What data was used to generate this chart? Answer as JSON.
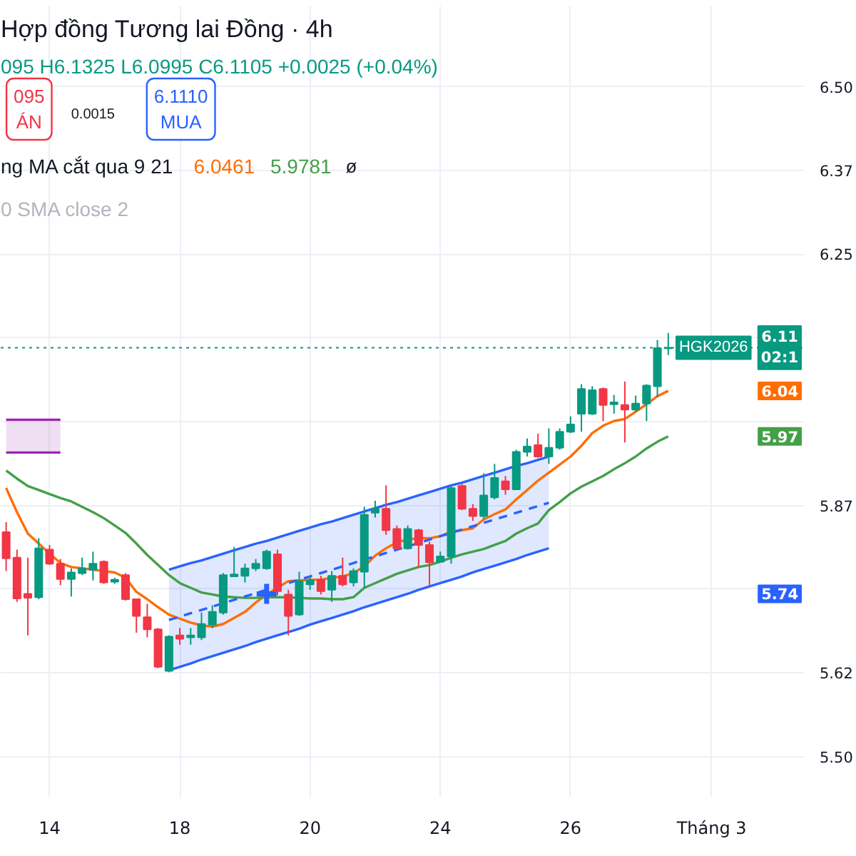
{
  "chart_data": {
    "type": "candlestick",
    "title": "Hợp đồng Tương lai Đồng · 4h",
    "subtitle": "095 H6.1325 L6.0995 C6.1105 +0.0025 (+0.04%)",
    "categories": [
      null,
      null,
      null,
      null,
      "14",
      null,
      null,
      null,
      null,
      null,
      null,
      null,
      null,
      null,
      null,
      null,
      "18",
      null,
      null,
      null,
      null,
      null,
      null,
      null,
      null,
      null,
      null,
      null,
      "20",
      null,
      null,
      null,
      null,
      null,
      null,
      null,
      null,
      null,
      null,
      null,
      "24",
      null,
      null,
      null,
      null,
      null,
      null,
      null,
      null,
      null,
      null,
      null,
      "26",
      null,
      null,
      null,
      null,
      null,
      null,
      null,
      null,
      null,
      null,
      null,
      null,
      "Tháng 3",
      null,
      null,
      null,
      null,
      null,
      null,
      null,
      null
    ],
    "ohlc": [
      [
        5.835,
        5.85,
        5.777,
        5.796
      ],
      [
        5.797,
        5.809,
        5.731,
        5.736
      ],
      [
        5.743,
        5.797,
        5.681,
        5.737
      ],
      [
        5.738,
        5.826,
        5.735,
        5.811
      ],
      [
        5.809,
        5.816,
        5.786,
        5.788
      ],
      [
        5.788,
        5.795,
        5.756,
        5.765
      ],
      [
        5.765,
        5.781,
        5.739,
        5.775
      ],
      [
        5.774,
        5.797,
        5.771,
        5.781
      ],
      [
        5.779,
        5.806,
        5.763,
        5.788
      ],
      [
        5.791,
        5.793,
        5.758,
        5.76
      ],
      [
        5.761,
        5.767,
        5.758,
        5.764
      ],
      [
        5.771,
        5.774,
        5.733,
        5.735
      ],
      [
        5.735,
        5.736,
        5.685,
        5.71
      ],
      [
        5.708,
        5.728,
        5.678,
        5.69
      ],
      [
        5.69,
        5.692,
        5.632,
        5.634
      ],
      [
        5.628,
        5.681,
        5.626,
        5.679
      ],
      [
        5.681,
        5.692,
        5.667,
        5.676
      ],
      [
        5.678,
        5.692,
        5.667,
        5.681
      ],
      [
        5.678,
        5.715,
        5.674,
        5.698
      ],
      [
        5.697,
        5.726,
        5.692,
        5.716
      ],
      [
        5.715,
        5.774,
        5.712,
        5.771
      ],
      [
        5.769,
        5.813,
        5.768,
        5.772
      ],
      [
        5.77,
        5.788,
        5.76,
        5.781
      ],
      [
        5.781,
        5.795,
        5.777,
        5.788
      ],
      [
        5.781,
        5.809,
        5.779,
        5.806
      ],
      [
        5.802,
        5.809,
        5.741,
        5.747
      ],
      [
        5.742,
        5.749,
        5.681,
        5.71
      ],
      [
        5.712,
        5.776,
        5.71,
        5.762
      ],
      [
        5.757,
        5.77,
        5.749,
        5.763
      ],
      [
        5.764,
        5.77,
        5.742,
        5.747
      ],
      [
        5.749,
        5.777,
        5.731,
        5.77
      ],
      [
        5.77,
        5.797,
        5.754,
        5.757
      ],
      [
        5.76,
        5.781,
        5.754,
        5.777
      ],
      [
        5.776,
        5.873,
        5.752,
        5.861
      ],
      [
        5.864,
        5.882,
        5.857,
        5.87
      ],
      [
        5.87,
        5.905,
        5.831,
        5.838
      ],
      [
        5.84,
        5.845,
        5.809,
        5.811
      ],
      [
        5.811,
        5.845,
        5.809,
        5.84
      ],
      [
        5.838,
        5.84,
        5.783,
        5.816
      ],
      [
        5.816,
        5.821,
        5.754,
        5.79
      ],
      [
        5.791,
        5.806,
        5.79,
        5.799
      ],
      [
        5.799,
        5.905,
        5.788,
        5.901
      ],
      [
        5.904,
        5.907,
        5.868,
        5.87
      ],
      [
        5.87,
        5.877,
        5.852,
        5.859
      ],
      [
        5.859,
        5.923,
        5.855,
        5.89
      ],
      [
        5.887,
        5.937,
        5.884,
        5.916
      ],
      [
        5.911,
        5.919,
        5.891,
        5.899
      ],
      [
        5.899,
        5.958,
        5.898,
        5.955
      ],
      [
        5.955,
        5.975,
        5.948,
        5.963
      ],
      [
        5.965,
        5.982,
        5.946,
        5.948
      ],
      [
        5.948,
        5.99,
        5.937,
        5.961
      ],
      [
        5.961,
        5.99,
        5.958,
        5.985
      ],
      [
        5.985,
        6.008,
        5.983,
        5.996
      ],
      [
        6.012,
        6.056,
        5.985,
        6.049
      ],
      [
        6.012,
        6.053,
        6.01,
        6.047
      ],
      [
        6.049,
        6.051,
        6.001,
        6.025
      ],
      [
        6.026,
        6.04,
        6.012,
        6.029
      ],
      [
        6.025,
        6.06,
        5.969,
        6.018
      ],
      [
        6.018,
        6.039,
        6.015,
        6.027
      ],
      [
        6.027,
        6.056,
        6.001,
        6.054
      ],
      [
        6.053,
        6.122,
        6.037,
        6.11
      ],
      [
        6.1095,
        6.1325,
        6.0995,
        6.1105
      ],
      null,
      null,
      null,
      null,
      null,
      null,
      null,
      null,
      null,
      null,
      null,
      null
    ],
    "colors": [
      "#f23645",
      "#f23645",
      "#f23645",
      "#089981",
      "#f23645",
      "#f23645",
      "#089981",
      "#089981",
      "#089981",
      "#f23645",
      "#089981",
      "#f23645",
      "#f23645",
      "#f23645",
      "#f23645",
      "#089981",
      "#f23645",
      "#089981",
      "#089981",
      "#089981",
      "#089981",
      "#089981",
      "#089981",
      "#089981",
      "#089981",
      "#f23645",
      "#f23645",
      "#089981",
      "#089981",
      "#f23645",
      "#089981",
      "#f23645",
      "#089981",
      "#089981",
      "#089981",
      "#f23645",
      "#f23645",
      "#089981",
      "#f23645",
      "#f23645",
      "#089981",
      "#089981",
      "#f23645",
      "#f23645",
      "#089981",
      "#089981",
      "#f23645",
      "#089981",
      "#089981",
      "#f23645",
      "#089981",
      "#089981",
      "#089981",
      "#089981",
      "#089981",
      "#f23645",
      "#089981",
      "#f23645",
      "#089981",
      "#089981",
      "#089981",
      "#089981",
      null,
      null,
      null,
      null,
      null,
      null,
      null,
      null,
      null,
      null,
      null,
      null
    ],
    "series": [
      {
        "type": "line",
        "color": "#ff6d00",
        "values": [
          5.901,
          5.865,
          5.833,
          5.818,
          5.803,
          5.789,
          5.783,
          5.781,
          5.779,
          5.777,
          5.775,
          5.767,
          5.746,
          5.735,
          5.723,
          5.712,
          5.706,
          5.7,
          5.696,
          5.694,
          5.698,
          5.707,
          5.716,
          5.73,
          5.742,
          5.752,
          5.762,
          5.763,
          5.764,
          5.764,
          5.767,
          5.769,
          5.774,
          5.784,
          5.8,
          5.811,
          5.82,
          5.824,
          5.826,
          5.826,
          5.829,
          5.836,
          5.838,
          5.841,
          5.854,
          5.862,
          5.869,
          5.884,
          5.898,
          5.912,
          5.924,
          5.936,
          5.948,
          5.964,
          5.983,
          5.994,
          6.001,
          6.004,
          6.015,
          6.026,
          6.038,
          6.0461,
          null,
          null,
          null,
          null,
          null,
          null,
          null,
          null,
          null,
          null,
          null,
          null
        ]
      },
      {
        "type": "line",
        "color": "#43a047",
        "values": [
          5.927,
          5.915,
          5.904,
          5.898,
          5.892,
          5.886,
          5.881,
          5.873,
          5.865,
          5.856,
          5.845,
          5.834,
          5.818,
          5.801,
          5.786,
          5.771,
          5.759,
          5.752,
          5.745,
          5.742,
          5.739,
          5.738,
          5.737,
          5.737,
          5.738,
          5.738,
          5.738,
          5.737,
          5.736,
          5.736,
          5.735,
          5.735,
          5.738,
          5.752,
          5.759,
          5.766,
          5.773,
          5.778,
          5.783,
          5.786,
          5.791,
          5.797,
          5.802,
          5.806,
          5.81,
          5.816,
          5.822,
          5.833,
          5.841,
          5.848,
          5.868,
          5.88,
          5.893,
          5.903,
          5.911,
          5.919,
          5.929,
          5.938,
          5.948,
          5.96,
          5.97,
          5.9781,
          null,
          null,
          null,
          null,
          null,
          null,
          null,
          null,
          null,
          null,
          null,
          null
        ]
      },
      {
        "type": "line",
        "color": "#2962ff",
        "line_style": "dashed",
        "values": [
          null,
          null,
          null,
          null,
          null,
          null,
          null,
          null,
          null,
          null,
          null,
          null,
          null,
          null,
          null,
          5.704,
          5.709,
          5.714,
          5.719,
          5.724,
          5.729,
          5.734,
          5.739,
          5.744,
          5.749,
          5.754,
          5.759,
          5.764,
          5.769,
          5.774,
          5.779,
          5.784,
          5.789,
          5.794,
          5.799,
          5.804,
          5.809,
          5.814,
          5.819,
          5.824,
          5.829,
          5.834,
          5.839,
          5.844,
          5.849,
          5.854,
          5.859,
          5.864,
          5.869,
          5.874,
          5.879,
          null,
          null,
          null,
          null,
          null,
          null,
          null,
          null,
          null,
          null,
          null,
          null,
          null,
          null,
          null,
          null,
          null,
          null,
          null,
          null,
          null,
          null,
          null
        ],
        "upper": [
          null,
          null,
          null,
          null,
          null,
          null,
          null,
          null,
          null,
          null,
          null,
          null,
          null,
          null,
          null,
          5.779,
          5.784,
          5.789,
          5.793,
          5.798,
          5.803,
          5.808,
          5.813,
          5.818,
          5.822,
          5.827,
          5.832,
          5.837,
          5.842,
          5.847,
          5.851,
          5.856,
          5.861,
          5.866,
          5.871,
          5.876,
          5.88,
          5.885,
          5.89,
          5.895,
          5.9,
          5.905,
          5.909,
          5.914,
          5.919,
          5.924,
          5.929,
          5.934,
          5.938,
          5.943,
          5.948,
          null,
          null,
          null,
          null,
          null,
          null,
          null,
          null,
          null,
          null,
          null,
          null,
          null,
          null,
          null,
          null,
          null,
          null,
          null,
          null,
          null,
          null,
          null
        ],
        "lower": [
          null,
          null,
          null,
          null,
          null,
          null,
          null,
          null,
          null,
          null,
          null,
          null,
          null,
          null,
          null,
          5.629,
          5.634,
          5.639,
          5.645,
          5.65,
          5.655,
          5.66,
          5.665,
          5.671,
          5.676,
          5.681,
          5.686,
          5.691,
          5.697,
          5.702,
          5.707,
          5.712,
          5.717,
          5.723,
          5.728,
          5.733,
          5.738,
          5.743,
          5.749,
          5.754,
          5.759,
          5.764,
          5.769,
          5.775,
          5.78,
          5.785,
          5.79,
          5.795,
          5.801,
          5.806,
          5.811,
          null,
          null,
          null,
          null,
          null,
          null,
          null,
          null,
          null,
          null,
          null,
          null,
          null,
          null,
          null,
          null,
          null,
          null,
          null,
          null,
          null,
          null,
          null
        ]
      },
      {
        "type": "line",
        "color": "#2962ff",
        "values": [
          null,
          null,
          null,
          null,
          null,
          null,
          null,
          null,
          null,
          null,
          null,
          null,
          null,
          null,
          null,
          5.779,
          5.784,
          5.789,
          5.793,
          5.798,
          5.803,
          5.808,
          5.813,
          5.818,
          5.822,
          5.827,
          5.832,
          5.837,
          5.842,
          5.847,
          5.851,
          5.856,
          5.861,
          5.866,
          5.871,
          5.876,
          5.88,
          5.885,
          5.89,
          5.895,
          5.9,
          5.905,
          5.909,
          5.914,
          5.919,
          5.924,
          5.929,
          5.934,
          5.938,
          5.943,
          5.948,
          null,
          null,
          null,
          null,
          null,
          null,
          null,
          null,
          null,
          null,
          null,
          null,
          null,
          null,
          null,
          null,
          null,
          null,
          null,
          null,
          null,
          null,
          null
        ]
      },
      {
        "type": "line",
        "color": "#2962ff",
        "values": [
          null,
          null,
          null,
          null,
          null,
          null,
          null,
          null,
          null,
          null,
          null,
          null,
          null,
          null,
          null,
          5.629,
          5.634,
          5.639,
          5.645,
          5.65,
          5.655,
          5.66,
          5.665,
          5.671,
          5.676,
          5.681,
          5.686,
          5.691,
          5.697,
          5.702,
          5.707,
          5.712,
          5.717,
          5.723,
          5.728,
          5.733,
          5.738,
          5.743,
          5.749,
          5.754,
          5.759,
          5.764,
          5.769,
          5.775,
          5.78,
          5.785,
          5.79,
          5.795,
          5.801,
          5.806,
          5.811,
          null,
          null,
          null,
          null,
          null,
          null,
          null,
          null,
          null,
          null,
          null,
          null,
          null,
          null,
          null,
          null,
          null,
          null,
          null,
          null,
          null,
          null,
          null
        ]
      },
      {
        "type": "line",
        "color": "#9c27b0",
        "values": [
          6.003,
          6.003,
          6.003,
          6.003,
          6.003,
          6.003,
          null,
          null,
          null,
          null,
          null,
          null,
          null,
          null,
          null,
          null,
          null,
          null,
          null,
          null,
          null,
          null,
          null,
          null,
          null,
          null,
          null,
          null,
          null,
          null,
          null,
          null,
          null,
          null,
          null,
          null,
          null,
          null,
          null,
          null,
          null,
          null,
          null,
          null,
          null,
          null,
          null,
          null,
          null,
          null,
          null,
          null,
          null,
          null,
          null,
          null,
          null,
          null,
          null,
          null,
          null,
          null,
          null,
          null,
          null,
          null,
          null,
          null,
          null,
          null,
          null,
          null,
          null,
          null
        ],
        "upper": [
          6.003,
          6.003,
          6.003,
          6.003,
          6.003,
          6.003,
          null,
          null,
          null,
          null,
          null,
          null,
          null,
          null,
          null,
          null,
          null,
          null,
          null,
          null,
          null,
          null,
          null,
          null,
          null,
          null,
          null,
          null,
          null,
          null,
          null,
          null,
          null,
          null,
          null,
          null,
          null,
          null,
          null,
          null,
          null,
          null,
          null,
          null,
          null,
          null,
          null,
          null,
          null,
          null,
          null,
          null,
          null,
          null,
          null,
          null,
          null,
          null,
          null,
          null,
          null,
          null,
          null,
          null,
          null,
          null,
          null,
          null,
          null,
          null,
          null,
          null,
          null,
          null
        ],
        "lower": [
          5.954,
          5.954,
          5.954,
          5.954,
          5.954,
          5.954,
          null,
          null,
          null,
          null,
          null,
          null,
          null,
          null,
          null,
          null,
          null,
          null,
          null,
          null,
          null,
          null,
          null,
          null,
          null,
          null,
          null,
          null,
          null,
          null,
          null,
          null,
          null,
          null,
          null,
          null,
          null,
          null,
          null,
          null,
          null,
          null,
          null,
          null,
          null,
          null,
          null,
          null,
          null,
          null,
          null,
          null,
          null,
          null,
          null,
          null,
          null,
          null,
          null,
          null,
          null,
          null,
          null,
          null,
          null,
          null,
          null,
          null,
          null,
          null,
          null,
          null,
          null,
          null
        ]
      },
      {
        "type": "line",
        "color": "#9c27b0",
        "values": [
          5.954,
          5.954,
          5.954,
          5.954,
          5.954,
          5.954,
          null,
          null,
          null,
          null,
          null,
          null,
          null,
          null,
          null,
          null,
          null,
          null,
          null,
          null,
          null,
          null,
          null,
          null,
          null,
          null,
          null,
          null,
          null,
          null,
          null,
          null,
          null,
          null,
          null,
          null,
          null,
          null,
          null,
          null,
          null,
          null,
          null,
          null,
          null,
          null,
          null,
          null,
          null,
          null,
          null,
          null,
          null,
          null,
          null,
          null,
          null,
          null,
          null,
          null,
          null,
          null,
          null,
          null,
          null,
          null,
          null,
          null,
          null,
          null,
          null,
          null,
          null,
          null
        ]
      },
      {
        "type": "scatter",
        "color": "#2962ff",
        "marker": "cross",
        "values": [
          null,
          null,
          null,
          null,
          null,
          null,
          null,
          null,
          null,
          null,
          null,
          null,
          null,
          null,
          null,
          null,
          null,
          null,
          null,
          null,
          null,
          null,
          null,
          null,
          5.743,
          null,
          null,
          null,
          null,
          null,
          null,
          null,
          null,
          null,
          null,
          null,
          null,
          null,
          null,
          null,
          null,
          null,
          null,
          null,
          null,
          null,
          null,
          null,
          null,
          null,
          null,
          null,
          null,
          null,
          null,
          null,
          null,
          null,
          null,
          null,
          null,
          null,
          null,
          null,
          null,
          null,
          null,
          null,
          null,
          null,
          null,
          null,
          null,
          null
        ]
      }
    ],
    "ylim": [
      5.44,
      6.62
    ],
    "yticks": [
      {
        "value": 5.5,
        "label": "5.50"
      },
      {
        "value": 5.625,
        "label": "5.62"
      },
      {
        "value": 5.75,
        "label": null
      },
      {
        "value": 5.875,
        "label": "5.87"
      },
      {
        "value": 6.0,
        "label": null
      },
      {
        "value": 6.125,
        "label": null
      },
      {
        "value": 6.25,
        "label": "6.25"
      },
      {
        "value": 6.375,
        "label": "6.37"
      },
      {
        "value": 6.5,
        "label": "6.50"
      }
    ],
    "grid": true,
    "ref_lines": [
      {
        "axis": "y",
        "value": 6.1105,
        "label": "HGK2026",
        "color": "#089981",
        "line_style": "dotted"
      }
    ],
    "annotations": [
      "095\nÁN",
      "0.0015",
      "6.1110\nMUA",
      "ng MA cắt qua 9 21",
      "6.0461",
      "5.9781",
      "ø",
      "0 SMA close 2",
      {
        "text": "6.11\n02:1",
        "y": 6.1105
      },
      {
        "text": "6.04",
        "y": 6.0461
      },
      {
        "text": "5.97",
        "y": 5.9781
      },
      {
        "text": "5.74",
        "y": 5.743
      }
    ]
  }
}
